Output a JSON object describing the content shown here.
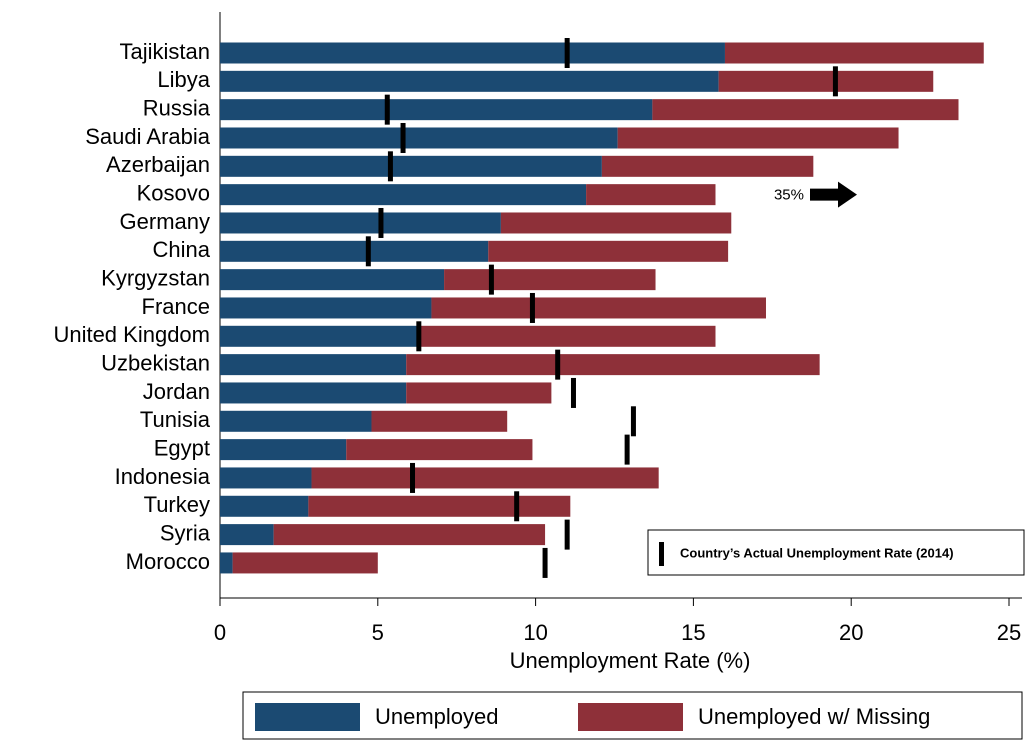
{
  "chart_data": {
    "type": "stacked-bar-horizontal",
    "xlabel": "Unemployment Rate (%)",
    "categories": [
      "Tajikistan",
      "Libya",
      "Russia",
      "Saudi Arabia",
      "Azerbaijan",
      "Kosovo",
      "Germany",
      "China",
      "Kyrgyzstan",
      "France",
      "United Kingdom",
      "Uzbekistan",
      "Jordan",
      "Tunisia",
      "Egypt",
      "Indonesia",
      "Turkey",
      "Syria",
      "Morocco"
    ],
    "series": [
      {
        "name": "Unemployed",
        "color": "#1b4a72",
        "values": [
          16.0,
          15.8,
          13.7,
          12.6,
          12.1,
          11.6,
          8.9,
          8.5,
          7.1,
          6.7,
          6.3,
          5.9,
          5.9,
          4.8,
          4.0,
          2.9,
          2.8,
          1.7,
          0.4
        ]
      },
      {
        "name": "Unemployed w/ Missing",
        "color": "#8e3039",
        "values": [
          8.2,
          6.8,
          9.7,
          8.9,
          6.7,
          4.1,
          7.3,
          7.6,
          6.7,
          10.6,
          9.4,
          13.1,
          4.6,
          4.3,
          5.9,
          11.0,
          8.3,
          8.6,
          4.6
        ]
      }
    ],
    "actual": {
      "name": "Country’s Actual Unemployment Rate (2014)",
      "color": "#000000",
      "values": [
        11.0,
        19.5,
        5.3,
        5.8,
        5.4,
        35,
        5.1,
        4.7,
        8.6,
        9.9,
        6.3,
        10.7,
        11.2,
        13.1,
        12.9,
        6.1,
        9.4,
        11.0,
        10.3
      ],
      "value_labels": [
        null,
        null,
        null,
        null,
        null,
        "35%",
        null,
        null,
        null,
        null,
        null,
        null,
        null,
        null,
        null,
        null,
        null,
        null,
        null
      ]
    },
    "xlim": [
      0,
      25
    ],
    "xticks": [
      0,
      5,
      10,
      15,
      20,
      25
    ]
  }
}
